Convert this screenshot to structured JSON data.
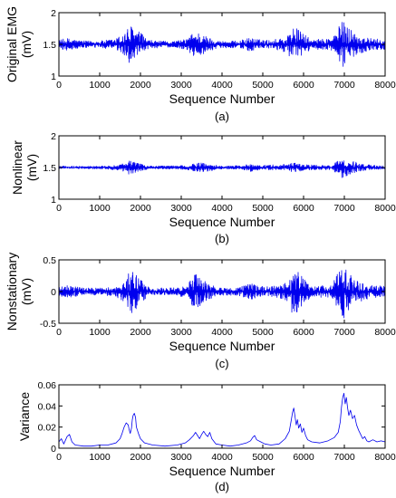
{
  "chart_data": [
    {
      "panel": "a",
      "type": "line",
      "xlabel": "Sequence Number",
      "ylabel": "Original EMG",
      "yunit": "(mV)",
      "caption": "(a)",
      "xlim": [
        0,
        8000
      ],
      "ylim": [
        1,
        2
      ],
      "xticks": [
        0,
        1000,
        2000,
        3000,
        4000,
        5000,
        6000,
        7000,
        8000
      ],
      "yticks": [
        1,
        1.5,
        2
      ],
      "series": [
        {
          "color": "#0000ee",
          "baseline": 1.5,
          "envelope": [
            [
              0,
              0.06
            ],
            [
              200,
              0.09
            ],
            [
              600,
              0.05
            ],
            [
              1000,
              0.05
            ],
            [
              1400,
              0.08
            ],
            [
              1600,
              0.18
            ],
            [
              1750,
              0.28
            ],
            [
              1950,
              0.2
            ],
            [
              2200,
              0.06
            ],
            [
              2700,
              0.04
            ],
            [
              3100,
              0.07
            ],
            [
              3350,
              0.2
            ],
            [
              3600,
              0.12
            ],
            [
              3900,
              0.05
            ],
            [
              4400,
              0.05
            ],
            [
              4700,
              0.1
            ],
            [
              4900,
              0.07
            ],
            [
              5200,
              0.06
            ],
            [
              5600,
              0.12
            ],
            [
              5750,
              0.27
            ],
            [
              5950,
              0.18
            ],
            [
              6200,
              0.06
            ],
            [
              6700,
              0.1
            ],
            [
              6950,
              0.34
            ],
            [
              7100,
              0.28
            ],
            [
              7300,
              0.14
            ],
            [
              7700,
              0.08
            ],
            [
              8000,
              0.07
            ]
          ]
        }
      ]
    },
    {
      "panel": "b",
      "type": "line",
      "xlabel": "Sequence Number",
      "ylabel": "Nonlinear",
      "yunit": "(mV)",
      "caption": "(b)",
      "xlim": [
        0,
        8000
      ],
      "ylim": [
        1,
        2
      ],
      "xticks": [
        0,
        1000,
        2000,
        3000,
        4000,
        5000,
        6000,
        7000,
        8000
      ],
      "yticks": [
        1,
        1.5,
        2
      ],
      "series": [
        {
          "color": "#0000ee",
          "baseline": 1.5,
          "envelope": [
            [
              0,
              0.02
            ],
            [
              1000,
              0.02
            ],
            [
              1500,
              0.04
            ],
            [
              1700,
              0.1
            ],
            [
              1900,
              0.07
            ],
            [
              2200,
              0.02
            ],
            [
              3100,
              0.03
            ],
            [
              3450,
              0.07
            ],
            [
              3700,
              0.05
            ],
            [
              4000,
              0.02
            ],
            [
              4500,
              0.03
            ],
            [
              4700,
              0.06
            ],
            [
              5000,
              0.03
            ],
            [
              5600,
              0.05
            ],
            [
              5800,
              0.07
            ],
            [
              6000,
              0.04
            ],
            [
              6700,
              0.03
            ],
            [
              6950,
              0.16
            ],
            [
              7100,
              0.12
            ],
            [
              7400,
              0.05
            ],
            [
              8000,
              0.02
            ]
          ]
        }
      ]
    },
    {
      "panel": "c",
      "type": "line",
      "xlabel": "Sequence Number",
      "ylabel": "Nonstationary",
      "yunit": "(mV)",
      "caption": "(c)",
      "xlim": [
        0,
        8000
      ],
      "ylim": [
        -0.5,
        0.5
      ],
      "xticks": [
        0,
        1000,
        2000,
        3000,
        4000,
        5000,
        6000,
        7000,
        8000
      ],
      "yticks": [
        -0.5,
        0,
        0.5
      ],
      "series": [
        {
          "color": "#0000ee",
          "baseline": 0,
          "envelope": [
            [
              0,
              0.06
            ],
            [
              200,
              0.1
            ],
            [
              600,
              0.05
            ],
            [
              1000,
              0.05
            ],
            [
              1400,
              0.07
            ],
            [
              1600,
              0.16
            ],
            [
              1800,
              0.36
            ],
            [
              1950,
              0.2
            ],
            [
              2200,
              0.06
            ],
            [
              2700,
              0.05
            ],
            [
              3100,
              0.08
            ],
            [
              3350,
              0.26
            ],
            [
              3600,
              0.14
            ],
            [
              3900,
              0.05
            ],
            [
              4400,
              0.06
            ],
            [
              4700,
              0.12
            ],
            [
              4900,
              0.08
            ],
            [
              5200,
              0.07
            ],
            [
              5550,
              0.12
            ],
            [
              5750,
              0.36
            ],
            [
              5950,
              0.22
            ],
            [
              6200,
              0.07
            ],
            [
              6700,
              0.1
            ],
            [
              6950,
              0.42
            ],
            [
              7100,
              0.3
            ],
            [
              7300,
              0.16
            ],
            [
              7700,
              0.09
            ],
            [
              8000,
              0.08
            ]
          ]
        }
      ]
    },
    {
      "panel": "d",
      "type": "line",
      "xlabel": "Sequence Number",
      "ylabel": "Variance",
      "yunit": "",
      "caption": "(d)",
      "xlim": [
        0,
        8000
      ],
      "ylim": [
        0,
        0.06
      ],
      "xticks": [
        0,
        1000,
        2000,
        3000,
        4000,
        5000,
        6000,
        7000,
        8000
      ],
      "yticks": [
        0,
        0.02,
        0.04,
        0.06
      ],
      "series": [
        {
          "color": "#0000ee",
          "points": [
            [
              0,
              0.006
            ],
            [
              60,
              0.009
            ],
            [
              120,
              0.004
            ],
            [
              200,
              0.011
            ],
            [
              260,
              0.013
            ],
            [
              320,
              0.006
            ],
            [
              400,
              0.003
            ],
            [
              600,
              0.002
            ],
            [
              800,
              0.002
            ],
            [
              1000,
              0.003
            ],
            [
              1200,
              0.003
            ],
            [
              1400,
              0.005
            ],
            [
              1500,
              0.009
            ],
            [
              1550,
              0.014
            ],
            [
              1600,
              0.02
            ],
            [
              1650,
              0.024
            ],
            [
              1700,
              0.022
            ],
            [
              1720,
              0.018
            ],
            [
              1750,
              0.014
            ],
            [
              1780,
              0.019
            ],
            [
              1800,
              0.027
            ],
            [
              1820,
              0.031
            ],
            [
              1850,
              0.033
            ],
            [
              1880,
              0.029
            ],
            [
              1900,
              0.02
            ],
            [
              1950,
              0.014
            ],
            [
              2000,
              0.009
            ],
            [
              2100,
              0.005
            ],
            [
              2300,
              0.003
            ],
            [
              2600,
              0.002
            ],
            [
              2900,
              0.003
            ],
            [
              3100,
              0.005
            ],
            [
              3200,
              0.008
            ],
            [
              3300,
              0.012
            ],
            [
              3350,
              0.015
            ],
            [
              3400,
              0.012
            ],
            [
              3450,
              0.009
            ],
            [
              3500,
              0.013
            ],
            [
              3550,
              0.016
            ],
            [
              3600,
              0.013
            ],
            [
              3650,
              0.011
            ],
            [
              3700,
              0.015
            ],
            [
              3750,
              0.009
            ],
            [
              3850,
              0.004
            ],
            [
              4000,
              0.003
            ],
            [
              4200,
              0.002
            ],
            [
              4400,
              0.003
            ],
            [
              4600,
              0.005
            ],
            [
              4700,
              0.007
            ],
            [
              4750,
              0.01
            ],
            [
              4800,
              0.012
            ],
            [
              4850,
              0.008
            ],
            [
              4950,
              0.006
            ],
            [
              5050,
              0.004
            ],
            [
              5200,
              0.003
            ],
            [
              5400,
              0.004
            ],
            [
              5550,
              0.009
            ],
            [
              5650,
              0.016
            ],
            [
              5700,
              0.027
            ],
            [
              5730,
              0.034
            ],
            [
              5760,
              0.038
            ],
            [
              5790,
              0.03
            ],
            [
              5820,
              0.022
            ],
            [
              5850,
              0.027
            ],
            [
              5880,
              0.019
            ],
            [
              5920,
              0.023
            ],
            [
              5960,
              0.015
            ],
            [
              6000,
              0.019
            ],
            [
              6050,
              0.012
            ],
            [
              6100,
              0.008
            ],
            [
              6200,
              0.006
            ],
            [
              6400,
              0.005
            ],
            [
              6600,
              0.007
            ],
            [
              6750,
              0.01
            ],
            [
              6850,
              0.015
            ],
            [
              6900,
              0.025
            ],
            [
              6930,
              0.039
            ],
            [
              6960,
              0.048
            ],
            [
              6990,
              0.052
            ],
            [
              7020,
              0.042
            ],
            [
              7050,
              0.048
            ],
            [
              7080,
              0.038
            ],
            [
              7110,
              0.031
            ],
            [
              7150,
              0.036
            ],
            [
              7200,
              0.028
            ],
            [
              7250,
              0.031
            ],
            [
              7300,
              0.022
            ],
            [
              7350,
              0.017
            ],
            [
              7400,
              0.013
            ],
            [
              7450,
              0.009
            ],
            [
              7500,
              0.011
            ],
            [
              7550,
              0.007
            ],
            [
              7600,
              0.006
            ],
            [
              7700,
              0.008
            ],
            [
              7800,
              0.006
            ],
            [
              7900,
              0.007
            ],
            [
              8000,
              0.006
            ]
          ]
        }
      ]
    }
  ]
}
